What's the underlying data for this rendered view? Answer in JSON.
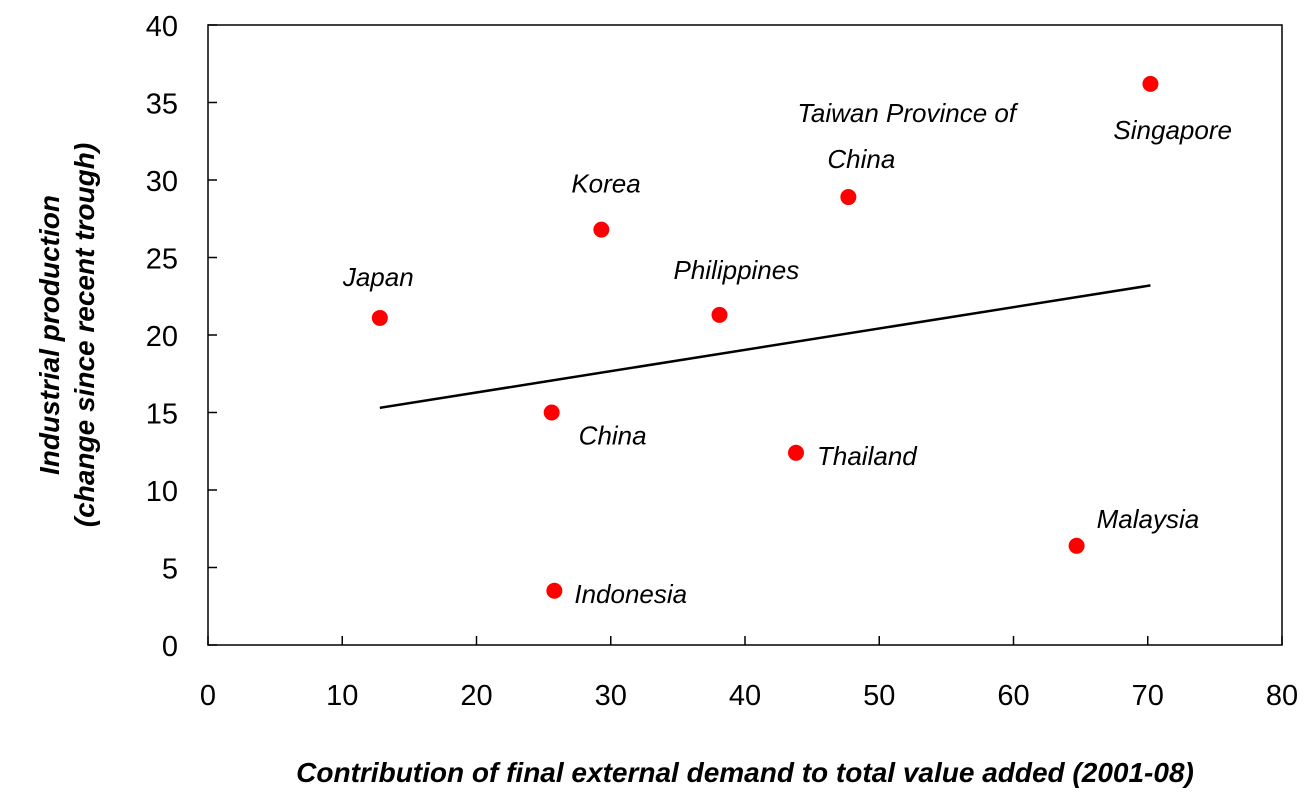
{
  "chart_data": {
    "type": "scatter",
    "title": "",
    "xlabel": "Contribution of final external demand to total value added (2001-08)",
    "ylabel": [
      "Industrial production",
      "(change since recent trough)"
    ],
    "xlim": [
      0,
      80
    ],
    "ylim": [
      0,
      40
    ],
    "x_ticks": [
      0,
      10,
      20,
      30,
      40,
      50,
      60,
      70,
      80
    ],
    "y_ticks": [
      0,
      5,
      10,
      15,
      20,
      25,
      30,
      35,
      40
    ],
    "grid": false,
    "legend": "none",
    "marker_color": "#ff0000",
    "line_color": "#000000",
    "points": [
      {
        "label": [
          "Japan"
        ],
        "x": 12.8,
        "y": 21.1
      },
      {
        "label": [
          "Korea"
        ],
        "x": 29.3,
        "y": 26.8
      },
      {
        "label": [
          "China"
        ],
        "x": 25.6,
        "y": 15.0
      },
      {
        "label": [
          "Indonesia"
        ],
        "x": 25.8,
        "y": 3.5
      },
      {
        "label": [
          "Philippines"
        ],
        "x": 38.1,
        "y": 21.3
      },
      {
        "label": [
          "Thailand"
        ],
        "x": 43.8,
        "y": 12.4
      },
      {
        "label": [
          "Taiwan Province of",
          "China"
        ],
        "x": 47.7,
        "y": 28.9
      },
      {
        "label": [
          "Malaysia"
        ],
        "x": 64.7,
        "y": 6.4
      },
      {
        "label": [
          "Singapore"
        ],
        "x": 70.2,
        "y": 36.2
      }
    ],
    "trend_line": {
      "x": [
        12.8,
        70.2
      ],
      "y": [
        15.3,
        23.2
      ]
    }
  }
}
